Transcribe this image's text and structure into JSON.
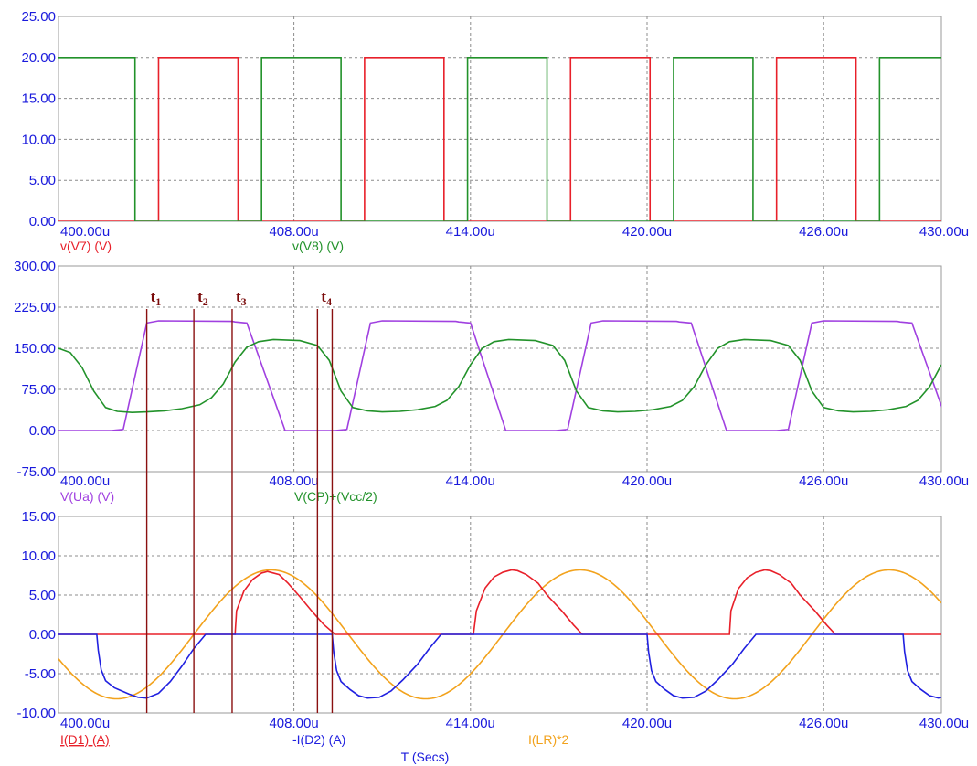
{
  "chart_data": [
    {
      "type": "line",
      "xlim": [
        400,
        430
      ],
      "ylim": [
        0,
        25
      ],
      "x_ticks": [
        400,
        408,
        414,
        420,
        426,
        430
      ],
      "x_tick_labels": [
        "400.00u",
        "408.00u",
        "414.00u",
        "420.00u",
        "426.00u",
        "430.00u"
      ],
      "y_ticks": [
        0,
        5,
        10,
        15,
        20,
        25
      ],
      "y_tick_labels": [
        "0.00",
        "5.00",
        "10.00",
        "15.00",
        "20.00",
        "25.00"
      ],
      "grid": true,
      "series": [
        {
          "name": "v(V7) (V)",
          "color": "#e8202a",
          "underline": false,
          "points": [
            [
              400,
              0
            ],
            [
              403.4,
              0
            ],
            [
              403.4,
              20
            ],
            [
              406.1,
              20
            ],
            [
              406.1,
              0
            ],
            [
              410.4,
              0
            ],
            [
              410.4,
              20
            ],
            [
              413.1,
              20
            ],
            [
              413.1,
              0
            ],
            [
              417.4,
              0
            ],
            [
              417.4,
              20
            ],
            [
              420.1,
              20
            ],
            [
              420.1,
              0
            ],
            [
              424.4,
              0
            ],
            [
              424.4,
              20
            ],
            [
              427.1,
              20
            ],
            [
              427.1,
              0
            ],
            [
              430,
              0
            ]
          ]
        },
        {
          "name": "v(V8) (V)",
          "color": "#22922a",
          "underline": false,
          "points": [
            [
              400,
              20
            ],
            [
              402.6,
              20
            ],
            [
              402.6,
              0
            ],
            [
              406.9,
              0
            ],
            [
              406.9,
              20
            ],
            [
              409.6,
              20
            ],
            [
              409.6,
              0
            ],
            [
              413.9,
              0
            ],
            [
              413.9,
              20
            ],
            [
              416.6,
              20
            ],
            [
              416.6,
              0
            ],
            [
              420.9,
              0
            ],
            [
              420.9,
              20
            ],
            [
              423.6,
              20
            ],
            [
              423.6,
              0
            ],
            [
              427.9,
              0
            ],
            [
              427.9,
              20
            ],
            [
              430,
              20
            ]
          ]
        }
      ]
    },
    {
      "type": "line",
      "xlim": [
        400,
        430
      ],
      "ylim": [
        -75,
        300
      ],
      "x_ticks": [
        400,
        408,
        414,
        420,
        426,
        430
      ],
      "x_tick_labels": [
        "400.00u",
        "408.00u",
        "414.00u",
        "420.00u",
        "426.00u",
        "430.00u"
      ],
      "y_ticks": [
        -75,
        0,
        75,
        150,
        225,
        300
      ],
      "y_tick_labels": [
        "-75.00",
        "0.00",
        "75.00",
        "150.00",
        "225.00",
        "300.00"
      ],
      "grid": true,
      "series": [
        {
          "name": "V(Ua) (V)",
          "color": "#a040e0",
          "underline": false,
          "points": [
            [
              400,
              0
            ],
            [
              401.8,
              0
            ],
            [
              402.2,
              2
            ],
            [
              403.0,
              196
            ],
            [
              403.4,
              200
            ],
            [
              405.9,
              199
            ],
            [
              406.0,
              198
            ],
            [
              406.4,
              196
            ],
            [
              407.7,
              0
            ],
            [
              409.4,
              0
            ],
            [
              409.8,
              2
            ],
            [
              410.6,
              196
            ],
            [
              411.0,
              200
            ],
            [
              413.5,
              199
            ],
            [
              413.6,
              198
            ],
            [
              414.0,
              196
            ],
            [
              415.2,
              0
            ],
            [
              416.9,
              0
            ],
            [
              417.3,
              2
            ],
            [
              418.1,
              196
            ],
            [
              418.5,
              200
            ],
            [
              421.0,
              199
            ],
            [
              421.1,
              198
            ],
            [
              421.5,
              196
            ],
            [
              422.7,
              0
            ],
            [
              424.4,
              0
            ],
            [
              424.8,
              2
            ],
            [
              425.6,
              196
            ],
            [
              426.0,
              200
            ],
            [
              428.5,
              199
            ],
            [
              428.6,
              198
            ],
            [
              429.0,
              196
            ],
            [
              430.3,
              0
            ]
          ]
        },
        {
          "name": "V(CP)+(Vcc/2)",
          "color": "#22922a",
          "underline": false,
          "points": [
            [
              400,
              150
            ],
            [
              400.4,
              142
            ],
            [
              400.8,
              115
            ],
            [
              401.2,
              72
            ],
            [
              401.6,
              42
            ],
            [
              402.0,
              35
            ],
            [
              402.5,
              33
            ],
            [
              403.0,
              34
            ],
            [
              403.6,
              36
            ],
            [
              404.2,
              40
            ],
            [
              404.8,
              47
            ],
            [
              405.2,
              60
            ],
            [
              405.6,
              85
            ],
            [
              406.0,
              125
            ],
            [
              406.4,
              152
            ],
            [
              406.8,
              162
            ],
            [
              407.3,
              166
            ],
            [
              408.2,
              164
            ],
            [
              408.8,
              155
            ],
            [
              409.2,
              128
            ],
            [
              409.6,
              72
            ],
            [
              410.0,
              42
            ],
            [
              410.5,
              36
            ],
            [
              411.0,
              34
            ],
            [
              411.6,
              35
            ],
            [
              412.2,
              38
            ],
            [
              412.8,
              44
            ],
            [
              413.2,
              55
            ],
            [
              413.6,
              80
            ],
            [
              414.0,
              120
            ],
            [
              414.4,
              150
            ],
            [
              414.8,
              162
            ],
            [
              415.3,
              166
            ],
            [
              416.2,
              164
            ],
            [
              416.8,
              155
            ],
            [
              417.2,
              128
            ],
            [
              417.6,
              72
            ],
            [
              418.0,
              42
            ],
            [
              418.5,
              36
            ],
            [
              419.0,
              34
            ],
            [
              419.6,
              35
            ],
            [
              420.2,
              38
            ],
            [
              420.8,
              44
            ],
            [
              421.2,
              55
            ],
            [
              421.6,
              80
            ],
            [
              422.0,
              120
            ],
            [
              422.4,
              150
            ],
            [
              422.8,
              162
            ],
            [
              423.3,
              166
            ],
            [
              424.2,
              164
            ],
            [
              424.8,
              155
            ],
            [
              425.2,
              128
            ],
            [
              425.6,
              72
            ],
            [
              426.0,
              42
            ],
            [
              426.5,
              36
            ],
            [
              427.0,
              34
            ],
            [
              427.6,
              35
            ],
            [
              428.2,
              38
            ],
            [
              428.8,
              44
            ],
            [
              429.2,
              55
            ],
            [
              429.6,
              80
            ],
            [
              430.0,
              120
            ]
          ]
        }
      ],
      "annotations": [
        {
          "label": "t",
          "sub": "1",
          "x": 403.0
        },
        {
          "label": "t",
          "sub": "2",
          "x": 404.6
        },
        {
          "label": "t",
          "sub": "3",
          "x": 405.9
        },
        {
          "label": "t",
          "sub": "4",
          "x": 408.8
        }
      ]
    },
    {
      "type": "line",
      "xlim": [
        400,
        430
      ],
      "ylim": [
        -10,
        15
      ],
      "x_ticks": [
        400,
        408,
        414,
        420,
        426,
        430
      ],
      "x_tick_labels": [
        "400.00u",
        "408.00u",
        "414.00u",
        "420.00u",
        "426.00u",
        "430.00u"
      ],
      "y_ticks": [
        -10,
        -5,
        0,
        5,
        10,
        15
      ],
      "y_tick_labels": [
        "-10.00",
        "-5.00",
        "0.00",
        "5.00",
        "10.00",
        "15.00"
      ],
      "grid": true,
      "x_title": "T (Secs)",
      "series": [
        {
          "name": "I(LR)*2",
          "color": "#f2a21c",
          "underline": false,
          "func": {
            "kind": "sine",
            "amplitude": 8.2,
            "period": 10.5,
            "zero_up": 404.6,
            "x_start": 400,
            "x_end": 430
          }
        },
        {
          "name": "I(D1) (A)",
          "color": "#e8202a",
          "underline": true,
          "points": [
            [
              400,
              0
            ],
            [
              406.0,
              0
            ],
            [
              406.05,
              3
            ],
            [
              406.3,
              5.5
            ],
            [
              406.6,
              7.0
            ],
            [
              406.9,
              7.8
            ],
            [
              407.1,
              8.0
            ],
            [
              407.2,
              7.9
            ],
            [
              407.5,
              7.6
            ],
            [
              407.8,
              6.5
            ],
            [
              408.2,
              4.8
            ],
            [
              408.6,
              3.0
            ],
            [
              409.0,
              1.3
            ],
            [
              409.4,
              0
            ],
            [
              414.1,
              0
            ],
            [
              414.2,
              3
            ],
            [
              414.5,
              5.9
            ],
            [
              414.8,
              7.3
            ],
            [
              415.1,
              7.9
            ],
            [
              415.4,
              8.2
            ],
            [
              415.6,
              8.1
            ],
            [
              415.9,
              7.6
            ],
            [
              416.3,
              6.5
            ],
            [
              416.6,
              5.0
            ],
            [
              417.1,
              3.0
            ],
            [
              417.5,
              1.2
            ],
            [
              417.8,
              0
            ],
            [
              422.8,
              0
            ],
            [
              422.85,
              3
            ],
            [
              423.1,
              5.8
            ],
            [
              423.4,
              7.2
            ],
            [
              423.7,
              7.9
            ],
            [
              424.0,
              8.2
            ],
            [
              424.2,
              8.1
            ],
            [
              424.5,
              7.6
            ],
            [
              424.9,
              6.5
            ],
            [
              425.2,
              5.0
            ],
            [
              425.7,
              3.0
            ],
            [
              426.1,
              1.2
            ],
            [
              426.4,
              0
            ],
            [
              430,
              0
            ]
          ]
        },
        {
          "name": "-I(D2) (A)",
          "color": "#2020e0",
          "underline": false,
          "points": [
            [
              400,
              0
            ],
            [
              401.3,
              0
            ],
            [
              401.35,
              -2
            ],
            [
              401.45,
              -4.5
            ],
            [
              401.6,
              -5.9
            ],
            [
              401.9,
              -6.8
            ],
            [
              402.4,
              -7.6
            ],
            [
              402.7,
              -8.0
            ],
            [
              403.0,
              -8.1
            ],
            [
              403.4,
              -7.5
            ],
            [
              403.8,
              -6.0
            ],
            [
              404.2,
              -4.0
            ],
            [
              404.6,
              -1.8
            ],
            [
              405.0,
              0
            ],
            [
              409.3,
              0
            ],
            [
              409.35,
              -2.2
            ],
            [
              409.45,
              -4.6
            ],
            [
              409.6,
              -6.0
            ],
            [
              409.9,
              -7.0
            ],
            [
              410.2,
              -7.8
            ],
            [
              410.5,
              -8.1
            ],
            [
              410.9,
              -8.0
            ],
            [
              411.3,
              -7.2
            ],
            [
              411.7,
              -5.8
            ],
            [
              412.2,
              -3.8
            ],
            [
              412.6,
              -1.8
            ],
            [
              413.0,
              0
            ],
            [
              420.0,
              0
            ],
            [
              420.05,
              -2.2
            ],
            [
              420.15,
              -4.6
            ],
            [
              420.3,
              -6.0
            ],
            [
              420.6,
              -7.0
            ],
            [
              420.9,
              -7.8
            ],
            [
              421.2,
              -8.1
            ],
            [
              421.6,
              -8.0
            ],
            [
              422.0,
              -7.2
            ],
            [
              422.4,
              -5.8
            ],
            [
              422.9,
              -3.8
            ],
            [
              423.3,
              -1.8
            ],
            [
              423.7,
              0
            ],
            [
              428.7,
              0
            ],
            [
              428.75,
              -2.2
            ],
            [
              428.85,
              -4.6
            ],
            [
              429.0,
              -6.0
            ],
            [
              429.3,
              -7.0
            ],
            [
              429.6,
              -7.8
            ],
            [
              429.9,
              -8.1
            ],
            [
              430.0,
              -8.0
            ]
          ]
        }
      ]
    }
  ],
  "markers": {
    "color": "#8a1010",
    "x": [
      403.0,
      404.6,
      405.9,
      408.8,
      409.3
    ]
  }
}
